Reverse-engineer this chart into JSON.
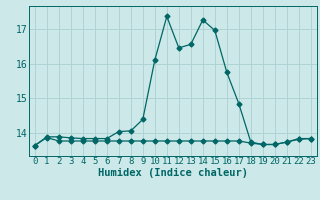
{
  "xlabel": "Humidex (Indice chaleur)",
  "bg_color": "#cce8e8",
  "grid_color": "#aad0d0",
  "line_color": "#006666",
  "xlim": [
    -0.5,
    23.5
  ],
  "ylim": [
    13.35,
    17.65
  ],
  "yticks": [
    14,
    15,
    16,
    17
  ],
  "xticks": [
    0,
    1,
    2,
    3,
    4,
    5,
    6,
    7,
    8,
    9,
    10,
    11,
    12,
    13,
    14,
    15,
    16,
    17,
    18,
    19,
    20,
    21,
    22,
    23
  ],
  "curve1_x": [
    0,
    1,
    2,
    3,
    4,
    5,
    6,
    7,
    8,
    9,
    10,
    11,
    12,
    13,
    14,
    15,
    16,
    17,
    18,
    19,
    20,
    21,
    22,
    23
  ],
  "curve1_y": [
    13.65,
    13.9,
    13.9,
    13.87,
    13.85,
    13.85,
    13.85,
    14.05,
    14.07,
    14.4,
    16.1,
    17.35,
    16.45,
    16.55,
    17.25,
    16.95,
    15.75,
    14.85,
    13.75,
    13.68,
    13.68,
    13.75,
    13.85,
    13.85
  ],
  "curve2_x": [
    0,
    1,
    2,
    3,
    4,
    5,
    6,
    7,
    8,
    9,
    10,
    11,
    12,
    13,
    14,
    15,
    16,
    17,
    18,
    19,
    20,
    21,
    22,
    23
  ],
  "curve2_y": [
    13.65,
    13.88,
    13.78,
    13.78,
    13.78,
    13.78,
    13.78,
    13.78,
    13.78,
    13.78,
    13.78,
    13.78,
    13.78,
    13.78,
    13.78,
    13.78,
    13.78,
    13.78,
    13.72,
    13.68,
    13.68,
    13.75,
    13.83,
    13.85
  ],
  "marker": "D",
  "marker_size": 2.5,
  "line_width": 0.9,
  "xlabel_fontsize": 7.5,
  "tick_fontsize": 6.5
}
